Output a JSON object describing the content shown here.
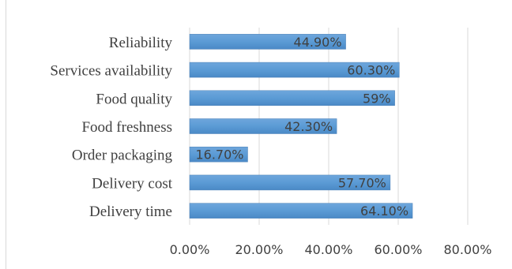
{
  "chart_data": {
    "type": "bar",
    "orientation": "horizontal",
    "title": "",
    "xlabel": "",
    "ylabel": "",
    "categories": [
      "Reliability",
      "Services availability",
      "Food quality",
      "Food freshness",
      "Order packaging",
      "Delivery cost",
      "Delivery time"
    ],
    "values": [
      44.9,
      60.3,
      59,
      42.3,
      16.7,
      57.7,
      64.1
    ],
    "data_labels": [
      "44.90%",
      "60.30%",
      "59%",
      "42.30%",
      "16.70%",
      "57.70%",
      "64.10%"
    ],
    "x_ticks": [
      "0.00%",
      "20.00%",
      "40.00%",
      "60.00%",
      "80.00%"
    ],
    "xlim": [
      0,
      80
    ],
    "grid": "vertical",
    "legend": "none",
    "colors": {
      "bar_fill": "#5b9bd5",
      "bar_gradient_top": "#6ea6dc",
      "bar_gradient_bottom": "#4a89c6",
      "gridline": "#d9d9d9",
      "text": "#404040"
    }
  }
}
